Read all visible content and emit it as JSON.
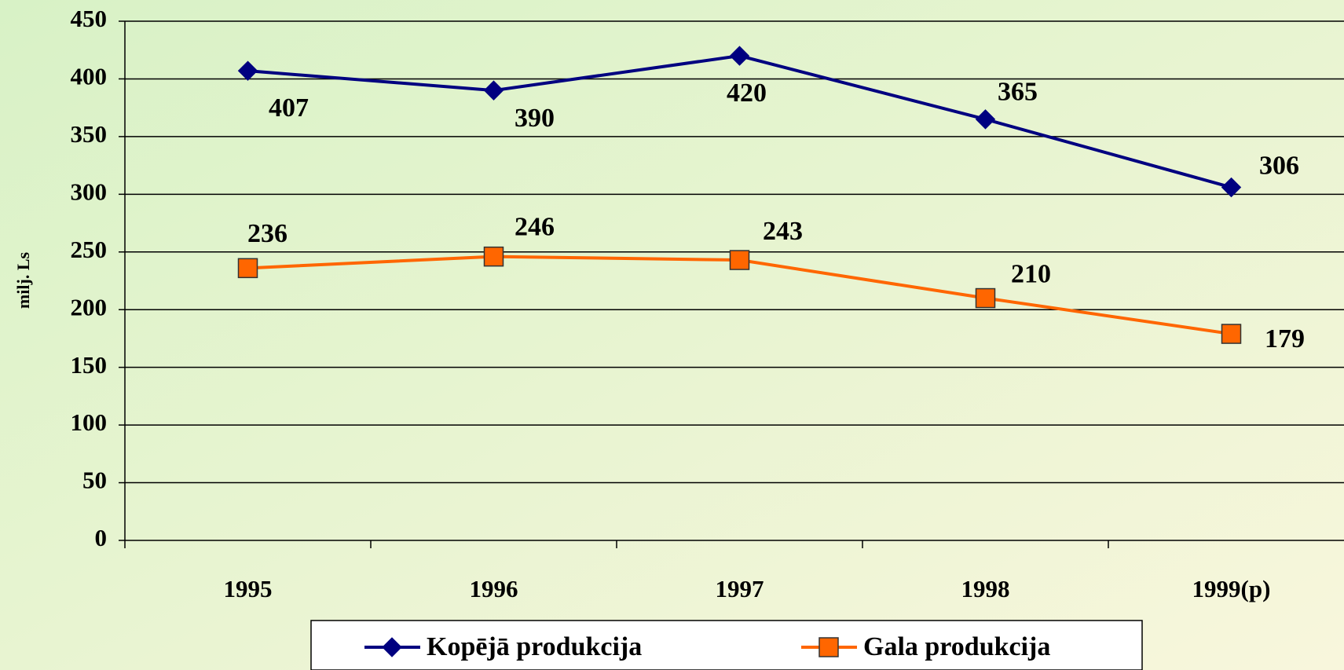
{
  "chart_data": {
    "type": "line",
    "y_label": "milj. Ls",
    "categories": [
      "1995",
      "1996",
      "1997",
      "1998",
      "1999(p)"
    ],
    "series": [
      {
        "name": "Kopējā produkcija",
        "color": "#000080",
        "marker": "diamond",
        "values": [
          407,
          390,
          420,
          365,
          306
        ]
      },
      {
        "name": "Gala produkcija",
        "color": "#ff6600",
        "marker": "square",
        "values": [
          236,
          246,
          243,
          210,
          179
        ]
      }
    ],
    "ylim": [
      0,
      450
    ],
    "yticks": [
      0,
      50,
      100,
      150,
      200,
      250,
      300,
      350,
      400,
      450
    ],
    "grid": true,
    "legend": "bottom"
  }
}
